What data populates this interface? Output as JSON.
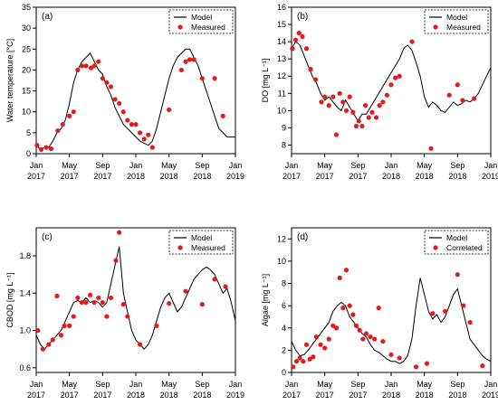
{
  "colors": {
    "model": "#000000",
    "measured": "#e41a1c",
    "axis": "#000000"
  },
  "chart_data": [
    {
      "type": "line",
      "panel_label": "(a)",
      "ylabel": "Water temperature [°C]",
      "ylim": [
        0,
        35
      ],
      "yticks": [
        0,
        5,
        10,
        15,
        20,
        25,
        30,
        35
      ],
      "ytick_labels": [
        "0",
        "5",
        "10",
        "15",
        "20",
        "25",
        "30",
        "35"
      ],
      "xlim": [
        0,
        24
      ],
      "xticks": [
        0,
        4,
        8,
        12,
        16,
        20,
        24
      ],
      "xtick_labels": [
        [
          "Jan",
          "2017"
        ],
        [
          "May",
          "2017"
        ],
        [
          "Sep",
          "2017"
        ],
        [
          "Jan",
          "2018"
        ],
        [
          "May",
          "2018"
        ],
        [
          "Sep",
          "2018"
        ],
        [
          "Jan",
          "2019"
        ]
      ],
      "legend": [
        "Model",
        "Measured"
      ],
      "series": [
        {
          "name": "Model",
          "kind": "line",
          "x": [
            0,
            0.5,
            1,
            1.5,
            2,
            2.5,
            3,
            3.5,
            4,
            4.5,
            5,
            5.5,
            6,
            6.5,
            7,
            7.5,
            8,
            8.5,
            9,
            9.5,
            10,
            10.5,
            11,
            11.5,
            12,
            12.5,
            13,
            13.5,
            14,
            14.5,
            15,
            15.5,
            16,
            16.5,
            17,
            17.5,
            18,
            18.5,
            19,
            19.5,
            20,
            20.5,
            21,
            21.5,
            22,
            22.5,
            23,
            23.5,
            24
          ],
          "y": [
            2,
            1,
            1.5,
            1.5,
            3,
            5,
            6,
            8,
            12,
            17,
            20,
            22,
            23,
            24,
            22,
            20,
            19,
            16,
            14,
            11,
            9,
            7,
            6,
            5,
            4,
            3,
            2.5,
            2,
            3,
            6,
            10,
            14,
            18,
            21,
            23,
            24,
            25,
            25,
            23,
            21,
            18,
            15,
            12,
            9,
            6,
            5,
            4,
            4,
            4
          ]
        },
        {
          "name": "Measured",
          "kind": "points",
          "x": [
            0.1,
            0.6,
            1.2,
            1.8,
            2.6,
            3.2,
            4.0,
            4.5,
            5.0,
            5.5,
            6.0,
            6.6,
            7.0,
            7.5,
            8.0,
            8.5,
            9.0,
            9.5,
            10.0,
            10.5,
            11.0,
            11.5,
            12.0,
            12.5,
            13.0,
            13.5,
            14.0,
            16.0,
            17.5,
            18.0,
            18.5,
            19.0,
            20.0,
            21.5,
            22.5
          ],
          "y": [
            2.0,
            1.0,
            1.5,
            1.2,
            5.5,
            7.0,
            9.0,
            10.0,
            20.0,
            21.0,
            21.0,
            20.5,
            21.0,
            22.0,
            18.0,
            17.0,
            16.0,
            13.0,
            12.0,
            10.0,
            8.0,
            7.0,
            7.0,
            5.0,
            3.5,
            4.5,
            1.5,
            10.5,
            20.0,
            22.0,
            22.5,
            22.5,
            18.0,
            18.0,
            9.0
          ]
        }
      ]
    },
    {
      "type": "line",
      "panel_label": "(b)",
      "ylabel": "DO [mg L⁻¹]",
      "ylim": [
        7.5,
        16
      ],
      "yticks": [
        8,
        9,
        10,
        11,
        12,
        13,
        14,
        15,
        16
      ],
      "ytick_labels": [
        "8",
        "9",
        "10",
        "11",
        "12",
        "13",
        "14",
        "15",
        "16"
      ],
      "xlim": [
        0,
        24
      ],
      "xticks": [
        0,
        4,
        8,
        12,
        16,
        20,
        24
      ],
      "xtick_labels": [
        [
          "Jan",
          "2017"
        ],
        [
          "May",
          "2017"
        ],
        [
          "Sep",
          "2017"
        ],
        [
          "Jan",
          "2018"
        ],
        [
          "May",
          "2018"
        ],
        [
          "Sep",
          "2018"
        ],
        [
          "Jan",
          "2019"
        ]
      ],
      "legend": [
        "Model",
        "Measured"
      ],
      "series": [
        {
          "name": "Model",
          "kind": "line",
          "x": [
            0,
            0.5,
            1,
            1.5,
            2,
            2.5,
            3,
            3.5,
            4,
            4.5,
            5,
            5.5,
            6,
            6.5,
            7,
            7.5,
            8,
            8.5,
            9,
            9.5,
            10,
            10.5,
            11,
            11.5,
            12,
            12.5,
            13,
            13.5,
            14,
            14.5,
            15,
            15.5,
            16,
            16.5,
            17,
            17.5,
            18,
            18.5,
            19,
            19.5,
            20,
            20.5,
            21,
            21.5,
            22,
            22.5,
            23,
            23.5,
            24
          ],
          "y": [
            13.6,
            14.0,
            13.8,
            13.2,
            12.6,
            12.0,
            11.6,
            11.0,
            10.6,
            10.8,
            10.5,
            10.2,
            10.0,
            10.6,
            10.2,
            9.8,
            9.4,
            9.8,
            9.8,
            10.2,
            10.6,
            11.0,
            11.4,
            11.8,
            12.2,
            12.6,
            13.0,
            13.6,
            13.8,
            13.5,
            12.8,
            12.0,
            10.8,
            10.2,
            10.5,
            10.3,
            10.0,
            9.9,
            10.2,
            10.5,
            10.3,
            10.4,
            10.6,
            10.5,
            10.7,
            11.0,
            11.5,
            12.0,
            12.5
          ]
        },
        {
          "name": "Measured",
          "kind": "points",
          "x": [
            0.1,
            0.5,
            0.9,
            1.3,
            1.8,
            2.3,
            2.9,
            3.6,
            4.0,
            4.5,
            5.0,
            5.4,
            5.8,
            6.2,
            6.6,
            7.0,
            7.4,
            7.8,
            8.1,
            8.5,
            8.9,
            9.3,
            9.7,
            10.2,
            10.6,
            11.0,
            11.5,
            12.0,
            12.5,
            13.0,
            14.5,
            16.8,
            19.0,
            20.0,
            20.6,
            22.0
          ],
          "y": [
            13.6,
            14.1,
            14.5,
            14.3,
            13.6,
            12.4,
            11.8,
            10.5,
            10.8,
            10.3,
            10.8,
            8.6,
            11.0,
            10.5,
            10.0,
            10.8,
            9.9,
            9.1,
            9.4,
            9.1,
            10.3,
            9.6,
            9.9,
            9.6,
            10.3,
            10.5,
            10.9,
            11.5,
            11.9,
            12.0,
            14.0,
            7.8,
            10.9,
            11.5,
            10.6,
            10.7
          ]
        }
      ]
    },
    {
      "type": "line",
      "panel_label": "(c)",
      "ylabel": "CBOD [mg L⁻¹]",
      "ylim": [
        0.55,
        2.1
      ],
      "yticks": [
        0.6,
        1.0,
        1.4,
        1.8
      ],
      "ytick_labels": [
        "0.6",
        "1.0",
        "1.4",
        "1.8"
      ],
      "xlim": [
        0,
        24
      ],
      "xticks": [
        0,
        4,
        8,
        12,
        16,
        20,
        24
      ],
      "xtick_labels": [
        [
          "Jan",
          "2017"
        ],
        [
          "May",
          "2017"
        ],
        [
          "Sep",
          "2017"
        ],
        [
          "Jan",
          "2018"
        ],
        [
          "May",
          "2018"
        ],
        [
          "Sep",
          "2018"
        ],
        [
          "Jan",
          "2019"
        ]
      ],
      "legend": [
        "Model",
        "Measured"
      ],
      "series": [
        {
          "name": "Model",
          "kind": "line",
          "x": [
            0,
            0.5,
            1,
            1.5,
            2,
            2.5,
            3,
            3.5,
            4,
            4.5,
            5,
            5.5,
            6,
            6.5,
            7,
            7.5,
            8,
            8.5,
            9,
            9.5,
            10,
            10.5,
            11,
            11.5,
            12,
            12.5,
            13,
            13.5,
            14,
            14.5,
            15,
            15.5,
            16,
            16.5,
            17,
            17.5,
            18,
            18.5,
            19,
            19.5,
            20,
            20.5,
            21,
            21.5,
            22,
            22.5,
            23,
            23.5,
            24
          ],
          "y": [
            0.95,
            0.85,
            0.8,
            0.85,
            0.9,
            0.95,
            1.0,
            1.1,
            1.2,
            1.3,
            1.32,
            1.3,
            1.35,
            1.3,
            1.32,
            1.3,
            1.25,
            1.3,
            1.5,
            1.7,
            1.9,
            1.4,
            1.2,
            1.0,
            0.9,
            0.85,
            0.8,
            0.85,
            0.95,
            1.1,
            1.25,
            1.35,
            1.4,
            1.3,
            1.2,
            1.25,
            1.35,
            1.45,
            1.55,
            1.6,
            1.65,
            1.68,
            1.65,
            1.6,
            1.5,
            1.4,
            1.45,
            1.3,
            1.1
          ]
        },
        {
          "name": "Measured",
          "kind": "points",
          "x": [
            0.2,
            0.8,
            1.5,
            2.0,
            2.5,
            3.0,
            3.4,
            4.0,
            4.5,
            5.0,
            5.5,
            6.0,
            6.5,
            7.0,
            7.5,
            8.0,
            8.5,
            9.0,
            9.6,
            10.0,
            10.5,
            11.0,
            12.5,
            14.5,
            16.0,
            18.0,
            20.0,
            21.5,
            22.8
          ],
          "y": [
            1.0,
            0.8,
            0.85,
            0.9,
            1.37,
            0.95,
            1.05,
            1.05,
            1.15,
            1.35,
            1.3,
            1.3,
            1.38,
            1.3,
            1.35,
            1.3,
            1.15,
            1.35,
            1.75,
            2.05,
            1.28,
            1.15,
            0.85,
            1.05,
            1.29,
            1.42,
            1.28,
            1.55,
            1.47
          ]
        }
      ]
    },
    {
      "type": "line",
      "panel_label": "(d)",
      "ylabel": "Algae [mg L⁻¹]",
      "ylim": [
        0,
        13
      ],
      "yticks": [
        0,
        2,
        4,
        6,
        8,
        10,
        12
      ],
      "ytick_labels": [
        "0",
        "2",
        "4",
        "6",
        "8",
        "10",
        "12"
      ],
      "xlim": [
        0,
        24
      ],
      "xticks": [
        0,
        4,
        8,
        12,
        16,
        20,
        24
      ],
      "xtick_labels": [
        [
          "Jan",
          "2017"
        ],
        [
          "May",
          "2017"
        ],
        [
          "Sep",
          "2017"
        ],
        [
          "Jan",
          "2018"
        ],
        [
          "May",
          "2018"
        ],
        [
          "Sep",
          "2018"
        ],
        [
          "Jan",
          "2019"
        ]
      ],
      "legend": [
        "Model",
        "Correlated"
      ],
      "series": [
        {
          "name": "Model",
          "kind": "line",
          "x": [
            0,
            0.5,
            1,
            1.5,
            2,
            2.5,
            3,
            3.5,
            4,
            4.5,
            5,
            5.5,
            6,
            6.5,
            7,
            7.5,
            8,
            8.5,
            9,
            9.5,
            10,
            10.5,
            11,
            11.5,
            12,
            12.5,
            13,
            13.5,
            14,
            14.5,
            15,
            15.5,
            16,
            16.5,
            17,
            17.5,
            18,
            18.5,
            19,
            19.5,
            20,
            20.5,
            21,
            21.5,
            22,
            22.5,
            23,
            23.5,
            24
          ],
          "y": [
            2.8,
            2.0,
            1.5,
            1.6,
            2.0,
            2.5,
            3.0,
            3.5,
            4.0,
            4.5,
            5.5,
            6.0,
            6.3,
            6.0,
            5.0,
            4.5,
            4.0,
            3.5,
            3.2,
            2.5,
            2.0,
            1.8,
            1.5,
            1.2,
            1.0,
            1.0,
            0.8,
            1.0,
            1.5,
            3.0,
            6.0,
            8.5,
            7.0,
            5.5,
            4.8,
            5.2,
            4.5,
            5.0,
            6.0,
            7.0,
            7.5,
            6.0,
            4.5,
            3.0,
            2.5,
            2.0,
            1.5,
            1.2,
            1.0
          ]
        },
        {
          "name": "Correlated",
          "kind": "points",
          "x": [
            0.2,
            0.6,
            1.0,
            1.4,
            1.8,
            2.2,
            2.6,
            3.0,
            3.5,
            4.0,
            4.5,
            5.0,
            5.4,
            5.8,
            6.2,
            6.6,
            7.0,
            7.4,
            7.8,
            8.2,
            8.6,
            9.0,
            9.5,
            10.0,
            10.5,
            11.0,
            12.0,
            13.0,
            15.0,
            16.3,
            17.0,
            18.5,
            20.0,
            20.7,
            21.5,
            23.0
          ],
          "y": [
            0.5,
            1.0,
            1.3,
            1.0,
            2.5,
            1.2,
            1.4,
            3.2,
            2.5,
            2.2,
            3.0,
            4.2,
            4.0,
            8.5,
            5.8,
            9.2,
            6.0,
            5.2,
            4.2,
            3.8,
            3.0,
            3.5,
            3.2,
            3.0,
            5.8,
            2.8,
            1.6,
            1.3,
            0.5,
            0.8,
            5.3,
            5.5,
            8.8,
            6.0,
            4.5,
            0.6
          ]
        }
      ]
    }
  ]
}
